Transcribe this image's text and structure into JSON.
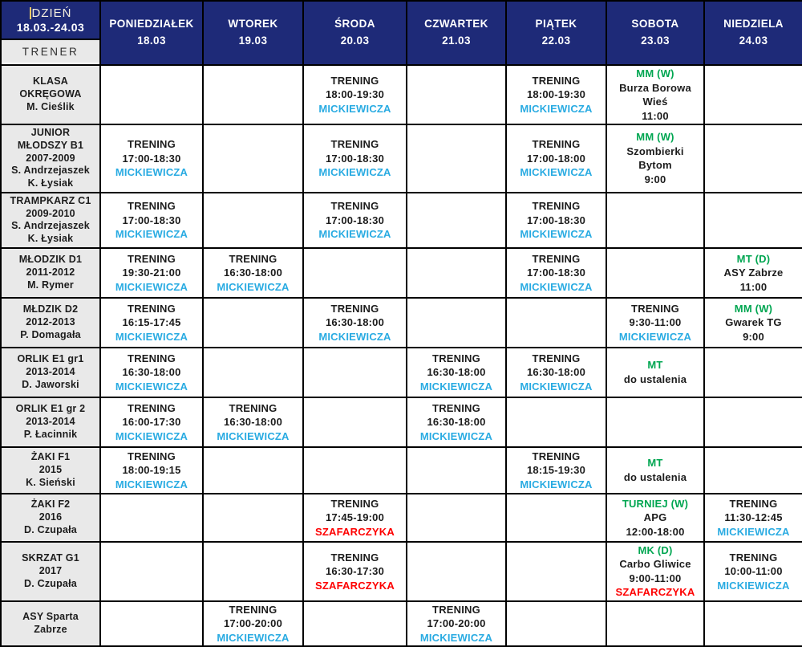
{
  "colors": {
    "navy": "#1e2a78",
    "cellgray": "#e9e9e9",
    "ink": "#1c1c1c",
    "cyan": "#29abe2",
    "green": "#00a651",
    "red": "#fe0000",
    "caret": "#e8c766",
    "cream": "#f5efdf"
  },
  "header": {
    "corner": {
      "title": "DZIEŃ",
      "range": "18.03.-24.03",
      "trainer": "TRENER"
    },
    "days": [
      {
        "label": "PONIEDZIAŁEK",
        "date": "18.03"
      },
      {
        "label": "WTOREK",
        "date": "19.03"
      },
      {
        "label": "ŚRODA",
        "date": "20.03"
      },
      {
        "label": "CZWARTEK",
        "date": "21.03"
      },
      {
        "label": "PIĄTEK",
        "date": "22.03"
      },
      {
        "label": "SOBOTA",
        "date": "23.03"
      },
      {
        "label": "NIEDZIELA",
        "date": "24.03"
      }
    ]
  },
  "rows": [
    {
      "label_lines": [
        "KLASA",
        "OKRĘGOWA",
        "M. Cieślik"
      ],
      "cells": [
        null,
        null,
        {
          "lines": [
            {
              "t": "TRENING",
              "c": "ink"
            },
            {
              "t": "18:00-19:30",
              "c": "ink"
            },
            {
              "t": "MICKIEWICZA",
              "c": "cyan"
            }
          ]
        },
        null,
        {
          "lines": [
            {
              "t": "TRENING",
              "c": "ink"
            },
            {
              "t": "18:00-19:30",
              "c": "ink"
            },
            {
              "t": "MICKIEWICZA",
              "c": "cyan"
            }
          ]
        },
        {
          "lines": [
            {
              "t": "MM (W)",
              "c": "green"
            },
            {
              "t": "Burza Borowa",
              "c": "ink"
            },
            {
              "t": "Wieś",
              "c": "ink"
            },
            {
              "t": "11:00",
              "c": "ink"
            }
          ]
        },
        null
      ]
    },
    {
      "label_lines": [
        "JUNIOR",
        "MŁODSZY B1",
        "2007-2009",
        "S. Andrzejaszek",
        "K. Łysiak"
      ],
      "cells": [
        {
          "lines": [
            {
              "t": "TRENING",
              "c": "ink"
            },
            {
              "t": "17:00-18:30",
              "c": "ink"
            },
            {
              "t": "MICKIEWICZA",
              "c": "cyan"
            }
          ]
        },
        null,
        {
          "lines": [
            {
              "t": "TRENING",
              "c": "ink"
            },
            {
              "t": "17:00-18:30",
              "c": "ink"
            },
            {
              "t": "MICKIEWICZA",
              "c": "cyan"
            }
          ]
        },
        null,
        {
          "lines": [
            {
              "t": "TRENING",
              "c": "ink"
            },
            {
              "t": "17:00-18:00",
              "c": "ink"
            },
            {
              "t": "MICKIEWICZA",
              "c": "cyan"
            }
          ]
        },
        {
          "lines": [
            {
              "t": "MM (W)",
              "c": "green"
            },
            {
              "t": "Szombierki",
              "c": "ink"
            },
            {
              "t": "Bytom",
              "c": "ink"
            },
            {
              "t": "9:00",
              "c": "ink"
            }
          ]
        },
        null
      ]
    },
    {
      "label_lines": [
        "TRAMPKARZ C1",
        "2009-2010",
        "S. Andrzejaszek",
        "K. Łysiak"
      ],
      "cells": [
        {
          "lines": [
            {
              "t": "TRENING",
              "c": "ink"
            },
            {
              "t": "17:00-18:30",
              "c": "ink"
            },
            {
              "t": "MICKIEWICZA",
              "c": "cyan"
            }
          ]
        },
        null,
        {
          "lines": [
            {
              "t": "TRENING",
              "c": "ink"
            },
            {
              "t": "17:00-18:30",
              "c": "ink"
            },
            {
              "t": "MICKIEWICZA",
              "c": "cyan"
            }
          ]
        },
        null,
        {
          "lines": [
            {
              "t": "TRENING",
              "c": "ink"
            },
            {
              "t": "17:00-18:30",
              "c": "ink"
            },
            {
              "t": "MICKIEWICZA",
              "c": "cyan"
            }
          ]
        },
        null,
        null
      ]
    },
    {
      "label_lines": [
        "MŁODZIK D1",
        "2011-2012",
        "M. Rymer"
      ],
      "cells": [
        {
          "lines": [
            {
              "t": "TRENING",
              "c": "ink"
            },
            {
              "t": "19:30-21:00",
              "c": "ink"
            },
            {
              "t": "MICKIEWICZA",
              "c": "cyan"
            }
          ]
        },
        {
          "lines": [
            {
              "t": "TRENING",
              "c": "ink"
            },
            {
              "t": "16:30-18:00",
              "c": "ink"
            },
            {
              "t": "MICKIEWICZA",
              "c": "cyan"
            }
          ]
        },
        null,
        null,
        {
          "lines": [
            {
              "t": "TRENING",
              "c": "ink"
            },
            {
              "t": "17:00-18:30",
              "c": "ink"
            },
            {
              "t": "MICKIEWICZA",
              "c": "cyan"
            }
          ]
        },
        null,
        {
          "lines": [
            {
              "t": "MT (D)",
              "c": "green"
            },
            {
              "t": "ASY Zabrze",
              "c": "ink"
            },
            {
              "t": "11:00",
              "c": "ink"
            }
          ]
        }
      ]
    },
    {
      "label_lines": [
        "MŁDZIK D2",
        "2012-2013",
        "P. Domagała"
      ],
      "cells": [
        {
          "lines": [
            {
              "t": "TRENING",
              "c": "ink"
            },
            {
              "t": "16:15-17:45",
              "c": "ink"
            },
            {
              "t": "MICKIEWICZA",
              "c": "cyan"
            }
          ]
        },
        null,
        {
          "lines": [
            {
              "t": "TRENING",
              "c": "ink"
            },
            {
              "t": "16:30-18:00",
              "c": "ink"
            },
            {
              "t": "MICKIEWICZA",
              "c": "cyan"
            }
          ]
        },
        null,
        null,
        {
          "lines": [
            {
              "t": "TRENING",
              "c": "ink"
            },
            {
              "t": "9:30-11:00",
              "c": "ink"
            },
            {
              "t": "MICKIEWICZA",
              "c": "cyan"
            }
          ]
        },
        {
          "lines": [
            {
              "t": "MM (W)",
              "c": "green"
            },
            {
              "t": "Gwarek TG",
              "c": "ink"
            },
            {
              "t": "9:00",
              "c": "ink"
            }
          ]
        }
      ]
    },
    {
      "label_lines": [
        "ORLIK E1 gr1",
        "2013-2014",
        "D. Jaworski"
      ],
      "cells": [
        {
          "lines": [
            {
              "t": "TRENING",
              "c": "ink"
            },
            {
              "t": "16:30-18:00",
              "c": "ink"
            },
            {
              "t": "MICKIEWICZA",
              "c": "cyan"
            }
          ]
        },
        null,
        null,
        {
          "lines": [
            {
              "t": "TRENING",
              "c": "ink"
            },
            {
              "t": "16:30-18:00",
              "c": "ink"
            },
            {
              "t": "MICKIEWICZA",
              "c": "cyan"
            }
          ]
        },
        {
          "lines": [
            {
              "t": "TRENING",
              "c": "ink"
            },
            {
              "t": "16:30-18:00",
              "c": "ink"
            },
            {
              "t": "MICKIEWICZA",
              "c": "cyan"
            }
          ]
        },
        {
          "lines": [
            {
              "t": "MT",
              "c": "green"
            },
            {
              "t": "do ustalenia",
              "c": "ink"
            }
          ]
        },
        null
      ]
    },
    {
      "label_lines": [
        "ORLIK E1 gr 2",
        "2013-2014",
        "P. Łacinnik"
      ],
      "cells": [
        {
          "lines": [
            {
              "t": "TRENING",
              "c": "ink"
            },
            {
              "t": "16:00-17:30",
              "c": "ink"
            },
            {
              "t": "MICKIEWICZA",
              "c": "cyan"
            }
          ]
        },
        {
          "lines": [
            {
              "t": "TRENING",
              "c": "ink"
            },
            {
              "t": "16:30-18:00",
              "c": "ink"
            },
            {
              "t": "MICKIEWICZA",
              "c": "cyan"
            }
          ]
        },
        null,
        {
          "lines": [
            {
              "t": "TRENING",
              "c": "ink"
            },
            {
              "t": "16:30-18:00",
              "c": "ink"
            },
            {
              "t": "MICKIEWICZA",
              "c": "cyan"
            }
          ]
        },
        null,
        null,
        null
      ]
    },
    {
      "label_lines": [
        "ŻAKI F1",
        "2015",
        "K. Sieński"
      ],
      "cells": [
        {
          "lines": [
            {
              "t": "TRENING",
              "c": "ink"
            },
            {
              "t": "18:00-19:15",
              "c": "ink"
            },
            {
              "t": "MICKIEWICZA",
              "c": "cyan"
            }
          ]
        },
        null,
        null,
        null,
        {
          "lines": [
            {
              "t": "TRENING",
              "c": "ink"
            },
            {
              "t": "18:15-19:30",
              "c": "ink"
            },
            {
              "t": "MICKIEWICZA",
              "c": "cyan"
            }
          ]
        },
        {
          "lines": [
            {
              "t": "MT",
              "c": "green"
            },
            {
              "t": "do ustalenia",
              "c": "ink"
            }
          ]
        },
        null
      ]
    },
    {
      "label_lines": [
        "ŻAKI F2",
        "2016",
        "D. Czupała"
      ],
      "cells": [
        null,
        null,
        {
          "lines": [
            {
              "t": "TRENING",
              "c": "ink"
            },
            {
              "t": "17:45-19:00",
              "c": "ink"
            },
            {
              "t": "SZAFARCZYKA",
              "c": "red"
            }
          ]
        },
        null,
        null,
        {
          "lines": [
            {
              "t": "TURNIEJ (W)",
              "c": "green"
            },
            {
              "t": "APG",
              "c": "ink"
            },
            {
              "t": "12:00-18:00",
              "c": "ink"
            }
          ]
        },
        {
          "lines": [
            {
              "t": "TRENING",
              "c": "ink"
            },
            {
              "t": "11:30-12:45",
              "c": "ink"
            },
            {
              "t": "MICKIEWICZA",
              "c": "cyan"
            }
          ]
        }
      ]
    },
    {
      "label_lines": [
        "SKRZAT G1",
        "2017",
        "D. Czupała"
      ],
      "cells": [
        null,
        null,
        {
          "lines": [
            {
              "t": "TRENING",
              "c": "ink"
            },
            {
              "t": "16:30-17:30",
              "c": "ink"
            },
            {
              "t": "SZAFARCZYKA",
              "c": "red"
            }
          ]
        },
        null,
        null,
        {
          "lines": [
            {
              "t": "MK (D)",
              "c": "green"
            },
            {
              "t": "Carbo Gliwice",
              "c": "ink"
            },
            {
              "t": "9:00-11:00",
              "c": "ink"
            },
            {
              "t": "SZAFARCZYKA",
              "c": "red"
            }
          ]
        },
        {
          "lines": [
            {
              "t": "TRENING",
              "c": "ink"
            },
            {
              "t": "10:00-11:00",
              "c": "ink"
            },
            {
              "t": "MICKIEWICZA",
              "c": "cyan"
            }
          ]
        }
      ]
    },
    {
      "label_lines": [
        "ASY Sparta",
        "Zabrze"
      ],
      "cells": [
        null,
        {
          "lines": [
            {
              "t": "TRENING",
              "c": "ink"
            },
            {
              "t": "17:00-20:00",
              "c": "ink"
            },
            {
              "t": "MICKIEWICZA",
              "c": "cyan"
            }
          ]
        },
        null,
        {
          "lines": [
            {
              "t": "TRENING",
              "c": "ink"
            },
            {
              "t": "17:00-20:00",
              "c": "ink"
            },
            {
              "t": "MICKIEWICZA",
              "c": "cyan"
            }
          ]
        },
        null,
        null,
        null
      ]
    }
  ]
}
